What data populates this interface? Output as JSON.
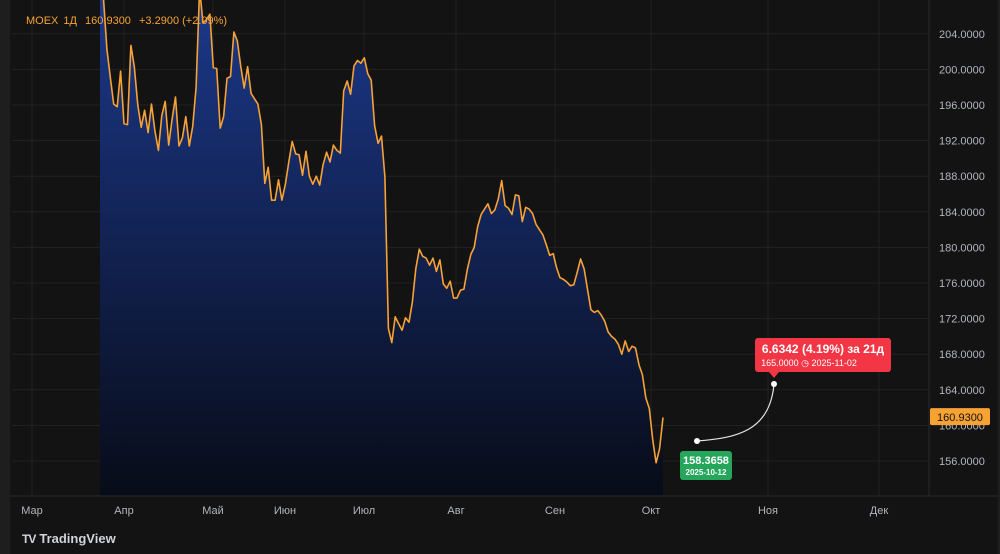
{
  "header": {
    "symbol": "MOEX",
    "interval": "1Д",
    "last_price": "160.9300",
    "change": "+3.2900 (+2.09%)"
  },
  "colors": {
    "line": "#f7a233",
    "area_top": "#1c3a8f",
    "area_bottom": "#080c18",
    "label_red": "#f23645",
    "label_green": "#26a65b"
  },
  "chart_data": {
    "type": "area",
    "title": "",
    "xlabel": "",
    "ylabel": "",
    "ylim": [
      153.6,
      208.0
    ],
    "x_ticks": [
      "Мар",
      "Апр",
      "Май",
      "Июн",
      "Июл",
      "Авг",
      "Сен",
      "Окт",
      "Ноя",
      "Дек"
    ],
    "y_ticks": [
      "156.0000",
      "160.0000",
      "164.0000",
      "168.0000",
      "172.0000",
      "176.0000",
      "180.0000",
      "184.0000",
      "188.0000",
      "192.0000",
      "196.0000",
      "200.0000",
      "204.0000"
    ],
    "current_price_label": "160.9300",
    "series": [
      {
        "values": [
          210.8,
          208.1,
          202.3,
          199.1,
          196.1,
          195.8,
          199.8,
          193.9,
          193.8,
          202.7,
          200.3,
          196.0,
          193.5,
          195.4,
          192.9,
          196.1,
          193.1,
          190.9,
          194.8,
          196.4,
          191.5,
          194.4,
          196.9,
          191.4,
          192.3,
          194.7,
          191.4,
          193.6,
          198.0,
          209.1,
          205.2,
          205.6,
          206.2,
          200.2,
          200.1,
          193.4,
          194.7,
          199.0,
          199.2,
          204.2,
          203.2,
          200.3,
          197.9,
          200.3,
          197.3,
          196.7,
          196.1,
          193.8,
          187.2,
          189.0,
          185.3,
          185.3,
          187.6,
          185.3,
          187.1,
          189.6,
          191.9,
          190.5,
          190.4,
          188.1,
          190.8,
          188.0,
          187.1,
          188.0,
          187.0,
          189.3,
          190.7,
          189.6,
          191.5,
          190.9,
          190.6,
          197.6,
          198.7,
          197.2,
          200.4,
          201.0,
          200.7,
          201.3,
          199.5,
          198.8,
          193.7,
          191.7,
          192.5,
          187.9,
          170.9,
          169.3,
          172.2,
          171.4,
          170.7,
          172.1,
          171.6,
          173.9,
          177.6,
          179.8,
          179.0,
          178.8,
          178.0,
          178.8,
          177.3,
          178.6,
          175.9,
          175.4,
          176.2,
          174.3,
          174.3,
          175.2,
          175.3,
          177.5,
          179.2,
          180.0,
          182.3,
          183.7,
          184.3,
          184.9,
          183.8,
          184.2,
          185.4,
          187.5,
          184.7,
          184.4,
          183.7,
          185.9,
          185.8,
          182.9,
          184.5,
          184.3,
          183.8,
          182.6,
          182.0,
          181.4,
          180.3,
          179.1,
          179.3,
          177.7,
          176.6,
          176.4,
          176.1,
          175.7,
          175.8,
          177.2,
          178.7,
          177.6,
          175.3,
          173.0,
          172.7,
          172.9,
          172.4,
          171.7,
          170.5,
          170.0,
          169.7,
          169.1,
          168.0,
          169.5,
          168.3,
          168.9,
          168.7,
          166.8,
          165.7,
          163.1,
          161.9,
          158.4,
          155.8,
          157.4,
          160.9
        ]
      }
    ],
    "annotations": {
      "measure_start": {
        "label": "158.3658",
        "date": "2025-10-12"
      },
      "measure_end": {
        "headline": "6.6342 (4.19%) за 21д",
        "detail": "165.0000 ◷ 2025-11-02"
      }
    }
  },
  "footer": {
    "logo_mark": "TV",
    "brand": "TradingView"
  }
}
